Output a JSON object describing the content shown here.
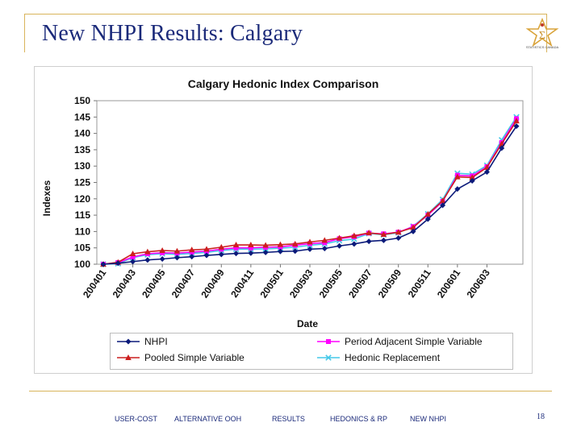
{
  "slide": {
    "title": "New NHPI Results: Calgary",
    "page_number": "18",
    "logo_caption": "STATISTICS CANADA"
  },
  "nav": {
    "items": [
      "USER-COST",
      "ALTERNATIVE OOH",
      "RESULTS",
      "HEDONICS & RP",
      "NEW NHPI"
    ]
  },
  "colors": {
    "title": "#1b2a7a",
    "accent_line": "#d9b45c",
    "nhpi": "#0b1a7a",
    "period_adjacent": "#ff00ff",
    "pooled": "#cc1f1f",
    "hedonic": "#44c8e8"
  },
  "chart_data": {
    "type": "line",
    "title": "Calgary Hedonic Index Comparison",
    "xlabel": "Date",
    "ylabel": "Indexes",
    "ylim": [
      100,
      150
    ],
    "yticks": [
      100,
      105,
      110,
      115,
      120,
      125,
      130,
      135,
      140,
      145,
      150
    ],
    "x": [
      "200401",
      "200402",
      "200403",
      "200404",
      "200405",
      "200406",
      "200407",
      "200408",
      "200409",
      "200410",
      "200411",
      "200412",
      "200501",
      "200502",
      "200503",
      "200504",
      "200505",
      "200506",
      "200507",
      "200508",
      "200509",
      "200510",
      "200511",
      "200512",
      "200601",
      "200602",
      "200603",
      "200604",
      "200605"
    ],
    "xtick_labels": [
      "200401",
      "200403",
      "200405",
      "200407",
      "200409",
      "200411",
      "200501",
      "200503",
      "200505",
      "200507",
      "200509",
      "200511",
      "200601",
      "200603"
    ],
    "legend_position": "bottom",
    "series": [
      {
        "name": "NHPI",
        "marker": "diamond",
        "values": [
          100,
          100.3,
          100.8,
          101.3,
          101.6,
          102.0,
          102.3,
          102.7,
          103.0,
          103.3,
          103.4,
          103.6,
          103.9,
          104.0,
          104.6,
          104.8,
          105.6,
          106.2,
          107.0,
          107.3,
          108.0,
          110.0,
          113.8,
          118.0,
          123.0,
          125.5,
          128.2,
          135.5,
          142.2
        ]
      },
      {
        "name": "Period Adjacent Simple Variable",
        "marker": "square",
        "values": [
          100,
          100.5,
          102.2,
          103.2,
          103.5,
          103.4,
          103.7,
          104.0,
          104.6,
          105.0,
          105.0,
          105.2,
          105.3,
          105.8,
          106.3,
          106.6,
          107.8,
          108.4,
          109.5,
          109.3,
          109.8,
          111.5,
          115.0,
          119.2,
          127.2,
          127.0,
          129.8,
          137.2,
          144.5
        ]
      },
      {
        "name": "Pooled Simple Variable",
        "marker": "triangle",
        "values": [
          100,
          100.6,
          103.2,
          103.8,
          104.2,
          104.0,
          104.4,
          104.6,
          105.2,
          105.9,
          105.9,
          105.8,
          106.0,
          106.2,
          106.8,
          107.3,
          108.0,
          108.7,
          109.6,
          109.1,
          109.8,
          111.2,
          115.3,
          119.4,
          126.7,
          126.5,
          129.6,
          136.8,
          143.8
        ]
      },
      {
        "name": "Hedonic Replacement",
        "marker": "x",
        "values": [
          100,
          100.2,
          102.0,
          102.9,
          103.2,
          103.0,
          103.3,
          103.6,
          104.2,
          104.6,
          104.6,
          104.7,
          104.9,
          105.2,
          105.8,
          106.2,
          107.2,
          107.7,
          109.4,
          109.0,
          109.6,
          111.6,
          115.4,
          119.8,
          127.8,
          127.5,
          130.2,
          138.0,
          145.0
        ]
      }
    ]
  }
}
